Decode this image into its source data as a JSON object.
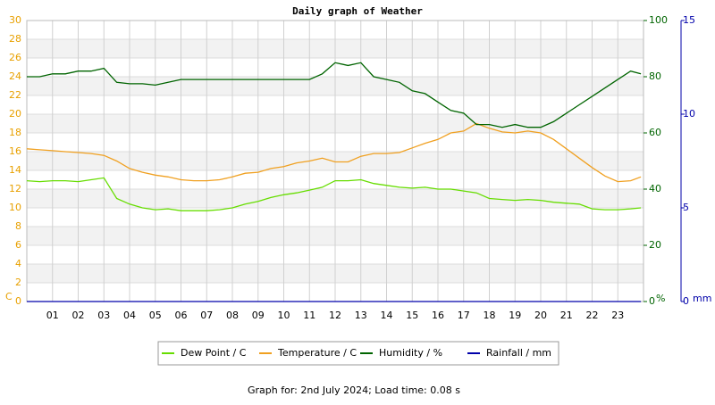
{
  "chart_data": {
    "type": "line",
    "title": "Daily graph of Weather",
    "footer": "Graph for: 2nd July 2024; Load time: 0.08 s",
    "ylabel": "C",
    "y2label": "%",
    "y3label": "mm",
    "x": [
      0,
      0.5,
      1,
      1.5,
      2,
      2.5,
      3,
      3.5,
      4,
      4.5,
      5,
      5.5,
      6,
      6.5,
      7,
      7.5,
      8,
      8.5,
      9,
      9.5,
      10,
      10.5,
      11,
      11.5,
      12,
      12.5,
      13,
      13.5,
      14,
      14.5,
      15,
      15.5,
      16,
      16.5,
      17,
      17.5,
      18,
      18.5,
      19,
      19.5,
      20,
      20.5,
      21,
      21.5,
      22,
      22.5,
      23,
      23.5,
      23.9
    ],
    "xlim": [
      0,
      24
    ],
    "xticks": [
      {
        "value": 1,
        "label": "01"
      },
      {
        "value": 2,
        "label": "02"
      },
      {
        "value": 3,
        "label": "03"
      },
      {
        "value": 4,
        "label": "04"
      },
      {
        "value": 5,
        "label": "05"
      },
      {
        "value": 6,
        "label": "06"
      },
      {
        "value": 7,
        "label": "07"
      },
      {
        "value": 8,
        "label": "08"
      },
      {
        "value": 9,
        "label": "09"
      },
      10,
      11,
      12,
      13,
      14,
      15,
      16,
      17,
      18,
      19,
      20,
      21,
      22,
      23
    ],
    "ylim": [
      0,
      30
    ],
    "yticks": [
      0,
      2,
      4,
      6,
      8,
      10,
      12,
      14,
      16,
      18,
      20,
      22,
      24,
      26,
      28,
      30
    ],
    "y2lim": [
      0,
      100
    ],
    "y2ticks": [
      0,
      20,
      40,
      60,
      80,
      100
    ],
    "y3lim": [
      0,
      15
    ],
    "y3ticks": [
      0,
      5,
      10,
      15
    ],
    "grid": true,
    "series": [
      {
        "name": "Dew Point / C",
        "color": "#66dd00",
        "axis": "y",
        "values": [
          12.9,
          12.8,
          12.9,
          12.9,
          12.8,
          13.0,
          13.2,
          11.0,
          10.4,
          10.0,
          9.8,
          9.9,
          9.7,
          9.7,
          9.7,
          9.8,
          10.0,
          10.4,
          10.7,
          11.1,
          11.4,
          11.6,
          11.9,
          12.2,
          12.9,
          12.9,
          13.0,
          12.6,
          12.4,
          12.2,
          12.1,
          12.2,
          12.0,
          12.0,
          11.8,
          11.6,
          11.0,
          10.9,
          10.8,
          10.9,
          10.8,
          10.6,
          10.5,
          10.4,
          9.9,
          9.8,
          9.8,
          9.9,
          10.0
        ]
      },
      {
        "name": "Temperature / C",
        "color": "#f0a020",
        "axis": "y",
        "values": [
          16.3,
          16.2,
          16.1,
          16.0,
          15.9,
          15.8,
          15.6,
          15.0,
          14.2,
          13.8,
          13.5,
          13.3,
          13.0,
          12.9,
          12.9,
          13.0,
          13.3,
          13.7,
          13.8,
          14.2,
          14.4,
          14.8,
          15.0,
          15.3,
          14.9,
          14.9,
          15.5,
          15.8,
          15.8,
          15.9,
          16.4,
          16.9,
          17.3,
          18.0,
          18.2,
          19.0,
          18.5,
          18.1,
          18.0,
          18.2,
          18.0,
          17.3,
          16.3,
          15.3,
          14.3,
          13.4,
          12.8,
          12.9,
          13.3
        ]
      },
      {
        "name": "Humidity / %",
        "color": "#006400",
        "axis": "y2",
        "values": [
          80,
          80,
          81,
          81,
          82,
          82,
          83,
          78,
          77.5,
          77.5,
          77,
          78,
          79,
          79,
          79,
          79,
          79,
          79,
          79,
          79,
          79,
          79,
          79,
          81,
          85,
          84,
          85,
          80,
          79,
          78,
          75,
          74,
          71,
          68,
          67,
          63,
          63,
          62,
          63,
          62,
          62,
          64,
          67,
          70,
          73,
          76,
          79,
          82,
          81
        ]
      },
      {
        "name": "Rainfall / mm",
        "color": "#0000aa",
        "axis": "y3",
        "values": [
          0,
          0,
          0,
          0,
          0,
          0,
          0,
          0,
          0,
          0,
          0,
          0,
          0,
          0,
          0,
          0,
          0,
          0,
          0,
          0,
          0,
          0,
          0,
          0,
          0,
          0,
          0,
          0,
          0,
          0,
          0,
          0,
          0,
          0,
          0,
          0,
          0,
          0,
          0,
          0,
          0,
          0,
          0,
          0,
          0,
          0,
          0,
          0,
          0
        ]
      }
    ]
  }
}
